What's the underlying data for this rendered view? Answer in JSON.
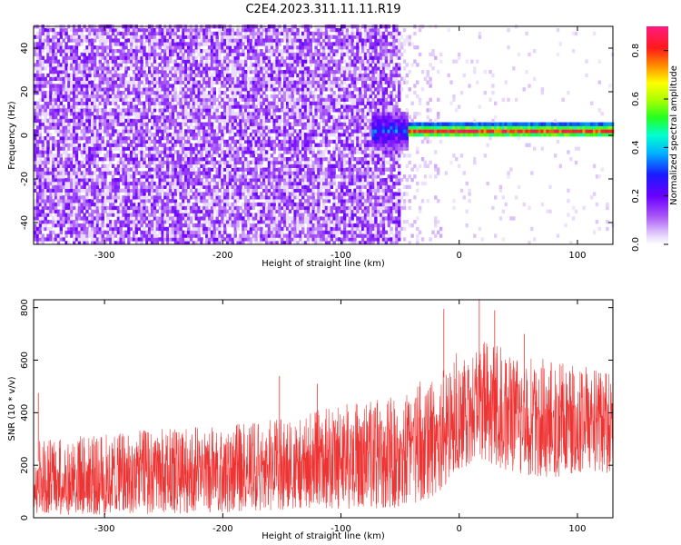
{
  "figure": {
    "title": "C2E4.2023.311.11.11.R19"
  },
  "chart_data": [
    {
      "type": "heatmap",
      "title": "C2E4.2023.311.11.11.R19",
      "xlabel": "Height of straight line (km)",
      "ylabel": "Frequency (Hz)",
      "xlim": [
        -360,
        130
      ],
      "ylim": [
        -50,
        50
      ],
      "x_ticks": [
        -300,
        -200,
        -100,
        0,
        100
      ],
      "y_ticks": [
        -40,
        -20,
        0,
        20,
        40
      ],
      "x_tick_labels": [
        "-300",
        "-200",
        "-100",
        "0",
        "100"
      ],
      "y_tick_labels": [
        "-40",
        "-20",
        "0",
        "20",
        "40"
      ],
      "colormap": "rainbow (white-purple-blue-cyan-green-yellow-red-pink)",
      "colorbar": {
        "label": "Normalized spectral amplitude",
        "range": [
          0.0,
          0.9
        ],
        "ticks": [
          0.0,
          0.2,
          0.4,
          0.6,
          0.8
        ],
        "tick_labels": [
          "0.0",
          "0.2",
          "0.4",
          "0.6",
          "0.8"
        ]
      },
      "features": {
        "noise_region_x": [
          -360,
          -50
        ],
        "noise_amplitude": 0.15,
        "carrier_start_x": -45,
        "carrier_end_x": 130,
        "carrier_frequency_hz": 1.5,
        "carrier_amplitude": 0.85
      },
      "grid": false
    },
    {
      "type": "line",
      "title": "",
      "xlabel": "Height of straight line (km)",
      "ylabel": "SNR (10 * v/v)",
      "xlim": [
        -360,
        130
      ],
      "ylim": [
        0,
        830
      ],
      "x_ticks": [
        -300,
        -200,
        -100,
        0,
        100
      ],
      "y_ticks": [
        0,
        200,
        400,
        600,
        800
      ],
      "x_tick_labels": [
        "-300",
        "-200",
        "-100",
        "0",
        "100"
      ],
      "y_tick_labels": [
        "0",
        "200",
        "400",
        "600",
        "800"
      ],
      "line_color": "#ee3333",
      "envelope": {
        "x": [
          -360,
          -300,
          -250,
          -200,
          -150,
          -120,
          -100,
          -50,
          -20,
          0,
          20,
          50,
          80,
          100,
          130
        ],
        "low": [
          10,
          10,
          15,
          20,
          30,
          35,
          25,
          40,
          80,
          180,
          220,
          160,
          150,
          170,
          170
        ],
        "high": [
          300,
          320,
          340,
          350,
          380,
          410,
          430,
          470,
          560,
          640,
          680,
          620,
          600,
          590,
          580
        ]
      },
      "peaks": [
        {
          "x": -356,
          "y": 475
        },
        {
          "x": -152,
          "y": 540
        },
        {
          "x": -120,
          "y": 510
        },
        {
          "x": -13,
          "y": 795
        },
        {
          "x": 17,
          "y": 830
        },
        {
          "x": 30,
          "y": 790
        },
        {
          "x": 55,
          "y": 700
        }
      ],
      "grid": false
    }
  ]
}
